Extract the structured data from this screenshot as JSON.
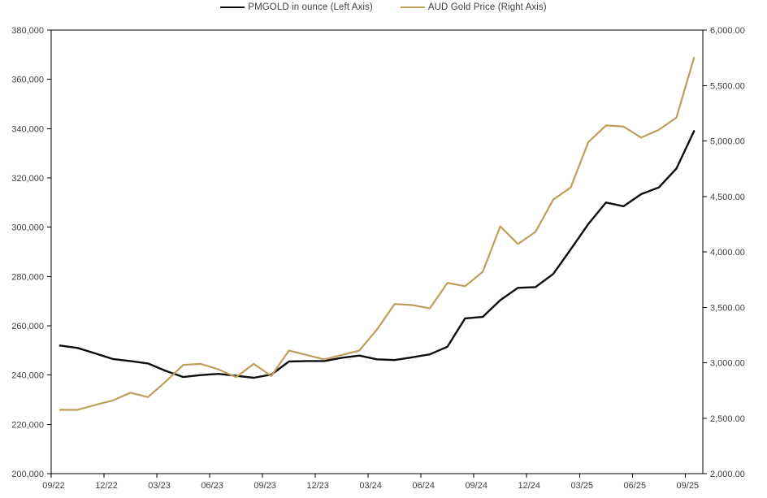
{
  "chart_data": {
    "type": "line",
    "title": "",
    "x_axis": {
      "months": [
        "09/22",
        "10/22",
        "11/22",
        "12/22",
        "01/23",
        "02/23",
        "03/23",
        "04/23",
        "05/23",
        "06/23",
        "07/23",
        "08/23",
        "09/23",
        "10/23",
        "11/23",
        "12/23",
        "01/24",
        "02/24",
        "03/24",
        "04/24",
        "05/24",
        "06/24",
        "07/24",
        "08/24",
        "09/24",
        "10/24",
        "11/24",
        "12/24",
        "01/25",
        "02/25",
        "03/25",
        "04/25",
        "05/25",
        "06/25",
        "07/25",
        "08/25",
        "09/25"
      ],
      "tick_labels": [
        "09/22",
        "12/22",
        "03/23",
        "06/23",
        "09/23",
        "12/23",
        "03/24",
        "06/24",
        "09/24",
        "12/24",
        "03/25",
        "06/25",
        "09/25"
      ],
      "ticks_every_n_months": 3
    },
    "left_axis": {
      "min": 200000,
      "max": 380000,
      "step": 20000,
      "tick_labels": [
        "200,000",
        "220,000",
        "240,000",
        "260,000",
        "280,000",
        "300,000",
        "320,000",
        "340,000",
        "360,000",
        "380,000"
      ]
    },
    "right_axis": {
      "min": 2000,
      "max": 6000,
      "step": 500,
      "tick_labels": [
        "2,000.00",
        "2,500.00",
        "3,000.00",
        "3,500.00",
        "4,000.00",
        "4,500.00",
        "5,000.00",
        "5,500.00",
        "6,000.00"
      ]
    },
    "series": [
      {
        "name": "PMGOLD in ounce (Left Axis)",
        "axis": "left",
        "color": "#0d0d0d",
        "stroke_width": 2.4,
        "values": [
          252000,
          251000,
          248800,
          246500,
          245700,
          244700,
          241700,
          239200,
          240000,
          240500,
          239700,
          238900,
          240200,
          245500,
          245700,
          245700,
          247000,
          247900,
          246400,
          246100,
          247200,
          248400,
          251500,
          263000,
          263600,
          270400,
          275400,
          275700,
          281000,
          291000,
          301300,
          310000,
          308500,
          313400,
          316100,
          323800,
          339000
        ]
      },
      {
        "name": "AUD Gold Price (Right Axis)",
        "axis": "right",
        "color": "#bf9e5b",
        "stroke_width": 2.2,
        "values": [
          2575,
          2575,
          2620,
          2660,
          2730,
          2690,
          2830,
          2980,
          2990,
          2940,
          2870,
          2990,
          2880,
          3110,
          3070,
          3030,
          3070,
          3110,
          3300,
          3530,
          3520,
          3490,
          3720,
          3690,
          3820,
          4230,
          4070,
          4180,
          4470,
          4580,
          4990,
          5140,
          5130,
          5030,
          5100,
          5210,
          5750
        ]
      }
    ],
    "legend": {
      "position": "top-center",
      "entries": [
        {
          "label": "PMGOLD in ounce (Left Axis)",
          "color": "#0d0d0d"
        },
        {
          "label": "AUD Gold Price (Right Axis)",
          "color": "#bf9e5b"
        }
      ]
    },
    "grid": "off",
    "plot_border_color": "#000000",
    "text_color": "#404040",
    "background": "#ffffff"
  }
}
